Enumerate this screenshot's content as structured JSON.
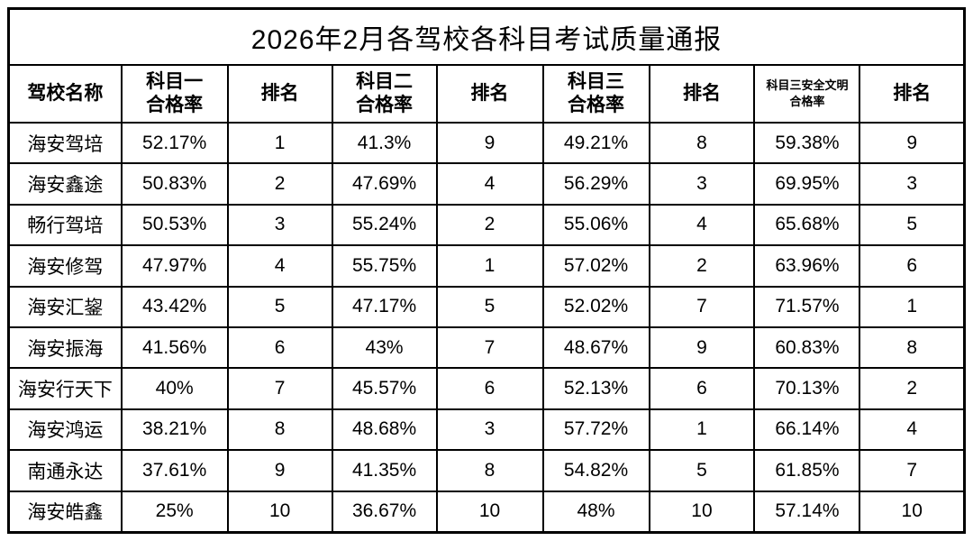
{
  "chart_data": {
    "type": "table",
    "title": "2026年2月各驾校各科目考试质量通报",
    "columns": [
      "驾校名称",
      "科目一合格率",
      "排名",
      "科目二合格率",
      "排名",
      "科目三合格率",
      "排名",
      "科目三安全文明合格率",
      "排名"
    ],
    "rows": [
      [
        "海安驾培",
        "52.17%",
        "1",
        "41.3%",
        "9",
        "49.21%",
        "8",
        "59.38%",
        "9"
      ],
      [
        "海安鑫途",
        "50.83%",
        "2",
        "47.69%",
        "4",
        "56.29%",
        "3",
        "69.95%",
        "3"
      ],
      [
        "畅行驾培",
        "50.53%",
        "3",
        "55.24%",
        "2",
        "55.06%",
        "4",
        "65.68%",
        "5"
      ],
      [
        "海安修驾",
        "47.97%",
        "4",
        "55.75%",
        "1",
        "57.02%",
        "2",
        "63.96%",
        "6"
      ],
      [
        "海安汇鋆",
        "43.42%",
        "5",
        "47.17%",
        "5",
        "52.02%",
        "7",
        "71.57%",
        "1"
      ],
      [
        "海安振海",
        "41.56%",
        "6",
        "43%",
        "7",
        "48.67%",
        "9",
        "60.83%",
        "8"
      ],
      [
        "海安行天下",
        "40%",
        "7",
        "45.57%",
        "6",
        "52.13%",
        "6",
        "70.13%",
        "2"
      ],
      [
        "海安鸿运",
        "38.21%",
        "8",
        "48.68%",
        "3",
        "57.72%",
        "1",
        "66.14%",
        "4"
      ],
      [
        "南通永达",
        "37.61%",
        "9",
        "41.35%",
        "8",
        "54.82%",
        "5",
        "61.85%",
        "7"
      ],
      [
        "海安皓鑫",
        "25%",
        "10",
        "36.67%",
        "10",
        "48%",
        "10",
        "57.14%",
        "10"
      ]
    ]
  },
  "header_display": [
    {
      "line1": "驾校名称",
      "line2": ""
    },
    {
      "line1": "科目一",
      "line2": "合格率"
    },
    {
      "line1": "排名",
      "line2": ""
    },
    {
      "line1": "科目二",
      "line2": "合格率"
    },
    {
      "line1": "排名",
      "line2": ""
    },
    {
      "line1": "科目三",
      "line2": "合格率"
    },
    {
      "line1": "排名",
      "line2": ""
    },
    {
      "line1": "科目三安全文明",
      "line2": "合格率"
    },
    {
      "line1": "排名",
      "line2": ""
    }
  ]
}
